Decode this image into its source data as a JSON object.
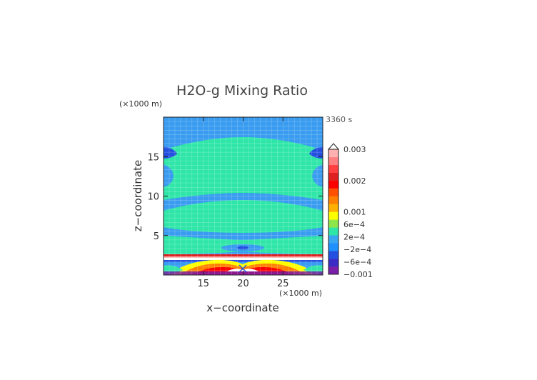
{
  "chart_data": {
    "type": "heatmap",
    "title": "H2O-g Mixing Ratio",
    "time_label": "3360 s",
    "xlabel": "x−coordinate",
    "ylabel": "z−coordinate",
    "x_unit": "(×1000 m)",
    "y_unit": "(×1000 m)",
    "xlim": [
      10,
      30
    ],
    "ylim": [
      0,
      20
    ],
    "x_ticks": [
      {
        "value": 15,
        "label": "15"
      },
      {
        "value": 20,
        "label": "20"
      },
      {
        "value": 25,
        "label": "25"
      }
    ],
    "y_ticks": [
      {
        "value": 5,
        "label": "5"
      },
      {
        "value": 10,
        "label": "10"
      },
      {
        "value": 15,
        "label": "15"
      }
    ],
    "colorbar": {
      "levels": [
        {
          "color": "#7a1fa8"
        },
        {
          "color": "#3a2bc4"
        },
        {
          "color": "#2350e0"
        },
        {
          "color": "#1e90ff"
        },
        {
          "color": "#3aa6f0"
        },
        {
          "color": "#2fe6a8"
        },
        {
          "color": "#8ee64a"
        },
        {
          "color": "#ffff00"
        },
        {
          "color": "#ffb000"
        },
        {
          "color": "#ff8000"
        },
        {
          "color": "#ff5000"
        },
        {
          "color": "#ff0000"
        },
        {
          "color": "#e02020"
        },
        {
          "color": "#ff4040"
        },
        {
          "color": "#ff8080"
        },
        {
          "color": "#ffb0b0"
        }
      ],
      "labels": [
        {
          "text": "0.003",
          "position": 1.0
        },
        {
          "text": "0.002",
          "position": 0.75
        },
        {
          "text": "0.001",
          "position": 0.5
        },
        {
          "text": "6e−4",
          "position": 0.4
        },
        {
          "text": "2e−4",
          "position": 0.3
        },
        {
          "text": "−2e−4",
          "position": 0.2
        },
        {
          "text": "−6e−4",
          "position": 0.1
        },
        {
          "text": "−0.001",
          "position": 0.0
        }
      ],
      "extend_top": true
    },
    "colors": {
      "blue_layer": "#3a9cf0",
      "green_layer": "#2fe6a8",
      "dark_band": "#3a2bc4",
      "grid_line": "#ffffff"
    },
    "grid": true
  }
}
